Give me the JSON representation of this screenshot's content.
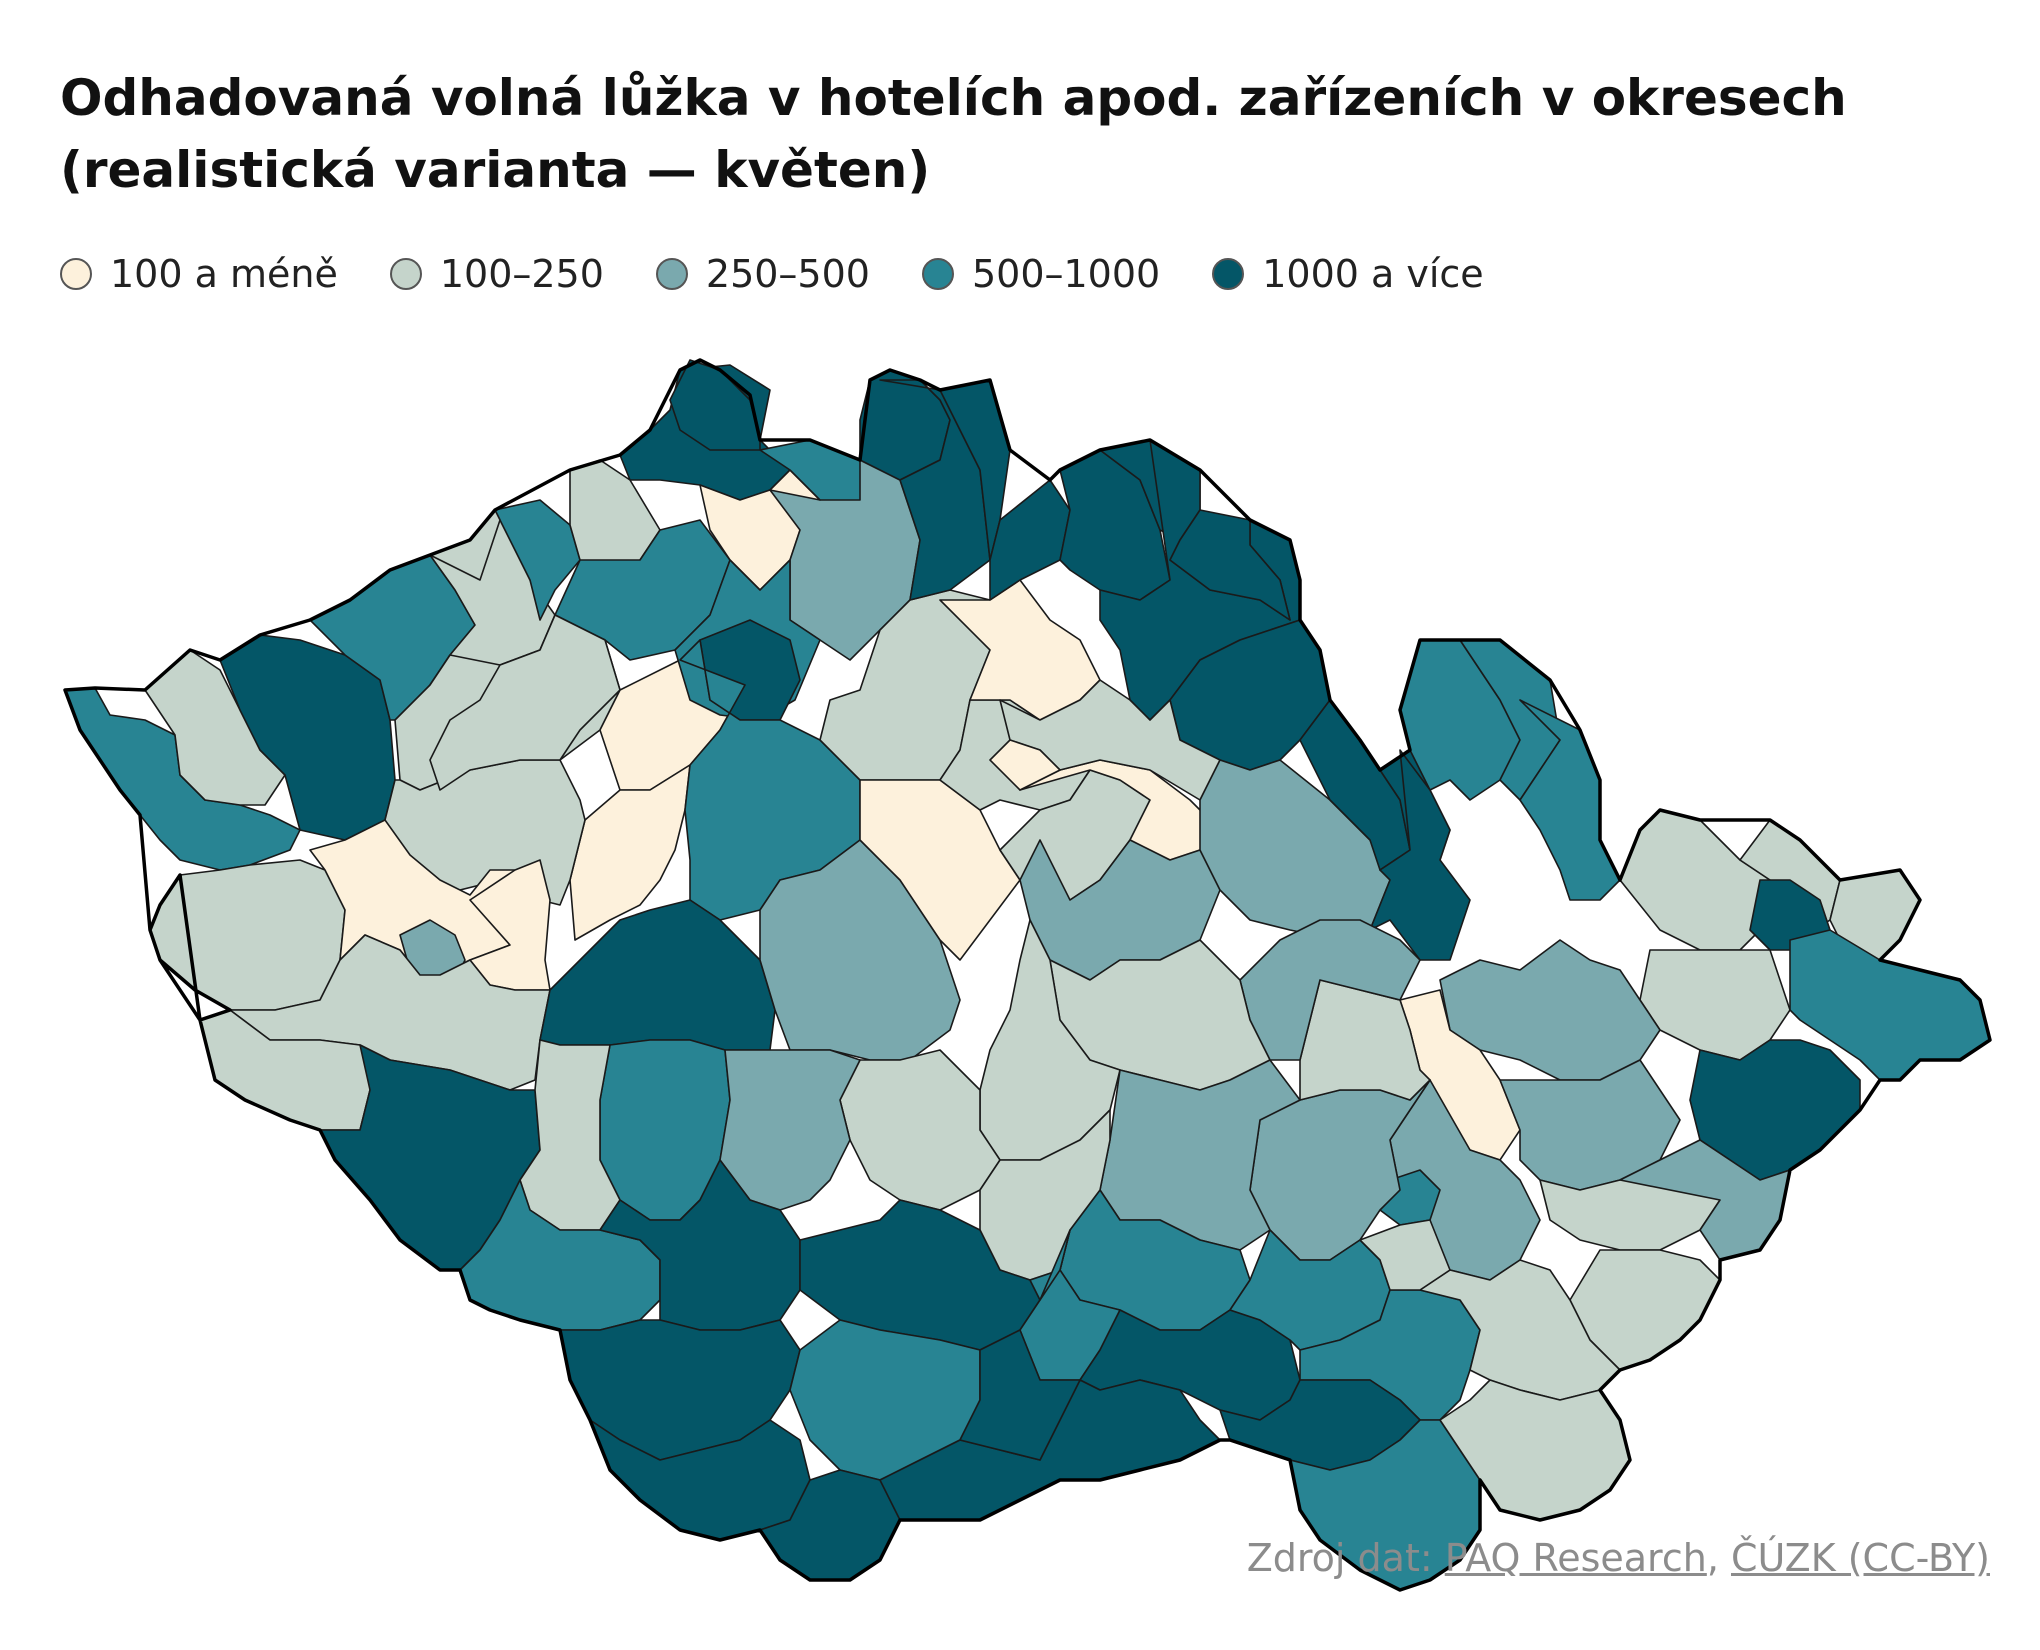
{
  "title_line1": "Odhadovaná volná lůžka v hotelích apod. zařízeních v okresech",
  "title_line2": "(realistická varianta — květen)",
  "legend": [
    {
      "label": "100 a méně",
      "color": "#fdf1dc"
    },
    {
      "label": "100–250",
      "color": "#c5d4cb"
    },
    {
      "label": "250–500",
      "color": "#7aa9ae"
    },
    {
      "label": "500–1000",
      "color": "#288493"
    },
    {
      "label": "1000 a více",
      "color": "#045667"
    }
  ],
  "source": {
    "prefix": "Zdroj dat: ",
    "link1": "PAQ Research",
    "separator": ", ",
    "link2": "ČÚZK (CC-BY)"
  }
}
